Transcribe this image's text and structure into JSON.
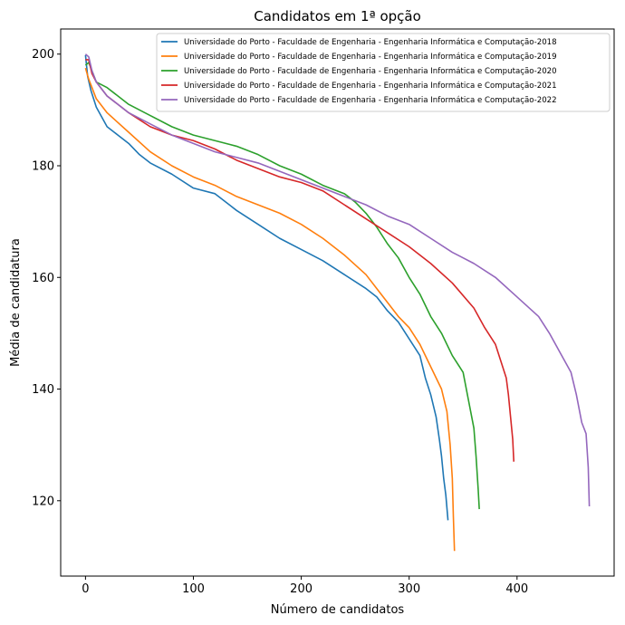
{
  "chart_data": {
    "type": "line",
    "title": "Candidatos em 1ª opção",
    "xlabel": "Número de candidatos",
    "ylabel": "Média de candidatura",
    "xlim": [
      -23,
      490
    ],
    "ylim": [
      106.5,
      204.5
    ],
    "xticks": [
      0,
      100,
      200,
      300,
      400
    ],
    "yticks": [
      120,
      140,
      160,
      180,
      200
    ],
    "grid": false,
    "legend_position": "top-right",
    "series": [
      {
        "name": "Universidade do Porto - Faculdade de Engenharia - Engenharia Informática e Computação-2018",
        "color": "#1f77b4",
        "points": [
          [
            0,
            199.8
          ],
          [
            2,
            196
          ],
          [
            5,
            193.5
          ],
          [
            10,
            190.5
          ],
          [
            20,
            187
          ],
          [
            30,
            185.5
          ],
          [
            40,
            184
          ],
          [
            50,
            182
          ],
          [
            60,
            180.5
          ],
          [
            80,
            178.5
          ],
          [
            100,
            176
          ],
          [
            120,
            175
          ],
          [
            140,
            172
          ],
          [
            160,
            169.5
          ],
          [
            180,
            167
          ],
          [
            200,
            165
          ],
          [
            220,
            163
          ],
          [
            240,
            160.5
          ],
          [
            260,
            158
          ],
          [
            270,
            156.5
          ],
          [
            280,
            154
          ],
          [
            290,
            152
          ],
          [
            300,
            149
          ],
          [
            310,
            146
          ],
          [
            315,
            142
          ],
          [
            320,
            139
          ],
          [
            325,
            135
          ],
          [
            328,
            131
          ],
          [
            330,
            128
          ],
          [
            332,
            124
          ],
          [
            334,
            121
          ],
          [
            336,
            116.5
          ]
        ]
      },
      {
        "name": "Universidade do Porto - Faculdade de Engenharia - Engenharia Informática e Computação-2019",
        "color": "#ff7f0e",
        "points": [
          [
            0,
            197.5
          ],
          [
            3,
            195.5
          ],
          [
            6,
            194
          ],
          [
            10,
            192
          ],
          [
            20,
            189.5
          ],
          [
            40,
            186
          ],
          [
            60,
            182.5
          ],
          [
            80,
            180
          ],
          [
            100,
            178
          ],
          [
            120,
            176.5
          ],
          [
            140,
            174.5
          ],
          [
            160,
            173
          ],
          [
            180,
            171.5
          ],
          [
            200,
            169.5
          ],
          [
            220,
            167
          ],
          [
            240,
            164
          ],
          [
            260,
            160.5
          ],
          [
            270,
            158
          ],
          [
            280,
            155.5
          ],
          [
            290,
            153
          ],
          [
            300,
            151
          ],
          [
            310,
            148
          ],
          [
            320,
            144
          ],
          [
            330,
            140
          ],
          [
            335,
            136
          ],
          [
            338,
            130
          ],
          [
            340,
            124
          ],
          [
            341,
            117
          ],
          [
            342,
            111
          ]
        ]
      },
      {
        "name": "Universidade do Porto - Faculdade de Engenharia - Engenharia Informática e Computação-2020",
        "color": "#2ca02c",
        "points": [
          [
            0,
            198
          ],
          [
            3,
            198.5
          ],
          [
            6,
            197
          ],
          [
            10,
            195
          ],
          [
            20,
            194
          ],
          [
            40,
            191
          ],
          [
            60,
            189
          ],
          [
            80,
            187
          ],
          [
            100,
            185.5
          ],
          [
            120,
            184.5
          ],
          [
            140,
            183.5
          ],
          [
            160,
            182
          ],
          [
            180,
            180
          ],
          [
            200,
            178.5
          ],
          [
            220,
            176.5
          ],
          [
            240,
            175
          ],
          [
            250,
            173.5
          ],
          [
            260,
            171.5
          ],
          [
            270,
            169
          ],
          [
            280,
            166
          ],
          [
            290,
            163.5
          ],
          [
            300,
            160
          ],
          [
            310,
            157
          ],
          [
            320,
            153
          ],
          [
            330,
            150
          ],
          [
            340,
            146
          ],
          [
            350,
            143
          ],
          [
            355,
            138
          ],
          [
            360,
            133
          ],
          [
            362,
            128
          ],
          [
            364,
            122
          ],
          [
            365,
            118.5
          ]
        ]
      },
      {
        "name": "Universidade do Porto - Faculdade de Engenharia - Engenharia Informática e Computação-2021",
        "color": "#d62728",
        "points": [
          [
            0,
            199
          ],
          [
            3,
            199
          ],
          [
            6,
            196.5
          ],
          [
            10,
            195
          ],
          [
            20,
            192.5
          ],
          [
            40,
            189.5
          ],
          [
            60,
            187
          ],
          [
            80,
            185.5
          ],
          [
            100,
            184.5
          ],
          [
            120,
            183
          ],
          [
            140,
            181
          ],
          [
            160,
            179.5
          ],
          [
            180,
            178
          ],
          [
            200,
            177
          ],
          [
            220,
            175.5
          ],
          [
            240,
            173
          ],
          [
            260,
            170.5
          ],
          [
            280,
            168
          ],
          [
            300,
            165.5
          ],
          [
            320,
            162.5
          ],
          [
            340,
            159
          ],
          [
            360,
            154.5
          ],
          [
            370,
            151
          ],
          [
            380,
            148
          ],
          [
            390,
            142
          ],
          [
            392,
            139
          ],
          [
            394,
            135
          ],
          [
            396,
            131
          ],
          [
            397,
            127
          ]
        ]
      },
      {
        "name": "Universidade do Porto - Faculdade de Engenharia - Engenharia Informática e Computação-2022",
        "color": "#9467bd",
        "points": [
          [
            0,
            200
          ],
          [
            3,
            199.5
          ],
          [
            6,
            197
          ],
          [
            10,
            195
          ],
          [
            20,
            192.5
          ],
          [
            40,
            189.5
          ],
          [
            60,
            187.5
          ],
          [
            80,
            185.5
          ],
          [
            100,
            184
          ],
          [
            120,
            182.5
          ],
          [
            140,
            181.5
          ],
          [
            160,
            180.5
          ],
          [
            180,
            179
          ],
          [
            200,
            177.5
          ],
          [
            220,
            176
          ],
          [
            240,
            174.5
          ],
          [
            260,
            173
          ],
          [
            280,
            171
          ],
          [
            300,
            169.5
          ],
          [
            320,
            167
          ],
          [
            340,
            164.5
          ],
          [
            360,
            162.5
          ],
          [
            380,
            160
          ],
          [
            400,
            156.5
          ],
          [
            420,
            153
          ],
          [
            430,
            150
          ],
          [
            440,
            146.5
          ],
          [
            450,
            143
          ],
          [
            455,
            139
          ],
          [
            460,
            134
          ],
          [
            464,
            132
          ],
          [
            466,
            126
          ],
          [
            467,
            119
          ]
        ]
      }
    ]
  }
}
